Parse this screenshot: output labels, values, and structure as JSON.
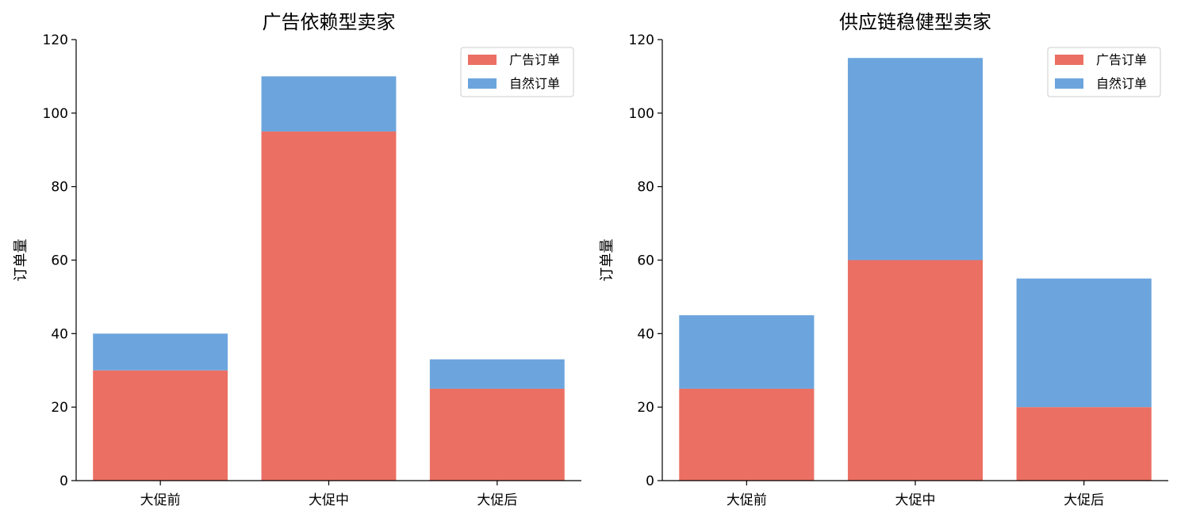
{
  "chart_data": [
    {
      "type": "bar",
      "stacked": true,
      "title": "广告依赖型卖家",
      "xlabel": "",
      "ylabel": "订单量",
      "categories": [
        "大促前",
        "大促中",
        "大促后"
      ],
      "series": [
        {
          "name": "广告订单",
          "values": [
            30,
            95,
            25
          ],
          "color": "#eb6f63"
        },
        {
          "name": "自然订单",
          "values": [
            10,
            15,
            8
          ],
          "color": "#6ca5dd"
        }
      ],
      "ylim": [
        0,
        120
      ],
      "yticks": [
        0,
        20,
        40,
        60,
        80,
        100,
        120
      ],
      "legend": "top-right",
      "grid": false
    },
    {
      "type": "bar",
      "stacked": true,
      "title": "供应链稳健型卖家",
      "xlabel": "",
      "ylabel": "订单量",
      "categories": [
        "大促前",
        "大促中",
        "大促后"
      ],
      "series": [
        {
          "name": "广告订单",
          "values": [
            25,
            60,
            20
          ],
          "color": "#eb6f63"
        },
        {
          "name": "自然订单",
          "values": [
            20,
            55,
            35
          ],
          "color": "#6ca5dd"
        }
      ],
      "ylim": [
        0,
        120
      ],
      "yticks": [
        0,
        20,
        40,
        60,
        80,
        100,
        120
      ],
      "legend": "top-right",
      "grid": false
    }
  ]
}
